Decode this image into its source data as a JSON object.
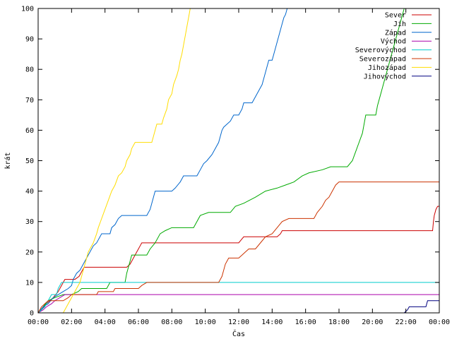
{
  "chart_data": {
    "type": "line",
    "xlabel": "Čas",
    "ylabel": "krát",
    "xlim": [
      0,
      24
    ],
    "ylim": [
      0,
      100
    ],
    "x_ticks": [
      {
        "value": 0,
        "label": "00:00"
      },
      {
        "value": 2,
        "label": "02:00"
      },
      {
        "value": 4,
        "label": "04:00"
      },
      {
        "value": 6,
        "label": "06:00"
      },
      {
        "value": 8,
        "label": "08:00"
      },
      {
        "value": 10,
        "label": "10:00"
      },
      {
        "value": 12,
        "label": "12:00"
      },
      {
        "value": 14,
        "label": "14:00"
      },
      {
        "value": 16,
        "label": "16:00"
      },
      {
        "value": 18,
        "label": "18:00"
      },
      {
        "value": 20,
        "label": "20:00"
      },
      {
        "value": 22,
        "label": "22:00"
      },
      {
        "value": 24,
        "label": "00:00"
      }
    ],
    "y_ticks": [
      0,
      10,
      20,
      30,
      40,
      50,
      60,
      70,
      80,
      90,
      100
    ],
    "grid": false,
    "legend_position": "top-right",
    "series": [
      {
        "name": "Sever",
        "color": "#cc0000",
        "points": [
          [
            0.0,
            0
          ],
          [
            0.2,
            1
          ],
          [
            0.35,
            2
          ],
          [
            0.5,
            3
          ],
          [
            0.7,
            4
          ],
          [
            0.9,
            5
          ],
          [
            1.05,
            6
          ],
          [
            1.2,
            7
          ],
          [
            1.3,
            8
          ],
          [
            1.4,
            9
          ],
          [
            1.5,
            10
          ],
          [
            1.6,
            11
          ],
          [
            2.2,
            11
          ],
          [
            2.45,
            12
          ],
          [
            2.55,
            13
          ],
          [
            2.65,
            14
          ],
          [
            2.75,
            15
          ],
          [
            5.3,
            15
          ],
          [
            5.5,
            16
          ],
          [
            5.6,
            17
          ],
          [
            5.7,
            18
          ],
          [
            5.8,
            19
          ],
          [
            5.9,
            20
          ],
          [
            6.0,
            21
          ],
          [
            6.1,
            22
          ],
          [
            6.2,
            23
          ],
          [
            12.0,
            23
          ],
          [
            12.15,
            24
          ],
          [
            12.3,
            25
          ],
          [
            14.3,
            25
          ],
          [
            14.5,
            26
          ],
          [
            14.6,
            27
          ],
          [
            23.6,
            27
          ],
          [
            23.65,
            30
          ],
          [
            23.7,
            32
          ],
          [
            23.8,
            34
          ],
          [
            23.9,
            35
          ],
          [
            24.0,
            35
          ]
        ]
      },
      {
        "name": "Jih",
        "color": "#00aa00",
        "points": [
          [
            0.0,
            0
          ],
          [
            0.3,
            2
          ],
          [
            0.6,
            4
          ],
          [
            1.0,
            5
          ],
          [
            1.5,
            6
          ],
          [
            2.0,
            6
          ],
          [
            2.4,
            7
          ],
          [
            2.6,
            8
          ],
          [
            4.1,
            8
          ],
          [
            4.2,
            9
          ],
          [
            4.3,
            10
          ],
          [
            5.2,
            10
          ],
          [
            5.3,
            13
          ],
          [
            5.4,
            15
          ],
          [
            5.5,
            17
          ],
          [
            5.6,
            19
          ],
          [
            6.5,
            19
          ],
          [
            6.7,
            21
          ],
          [
            7.0,
            23
          ],
          [
            7.3,
            26
          ],
          [
            7.6,
            27
          ],
          [
            8.0,
            28
          ],
          [
            9.3,
            28
          ],
          [
            9.5,
            30
          ],
          [
            9.7,
            32
          ],
          [
            10.2,
            33
          ],
          [
            11.5,
            33
          ],
          [
            11.8,
            35
          ],
          [
            12.3,
            36
          ],
          [
            13.0,
            38
          ],
          [
            13.6,
            40
          ],
          [
            14.3,
            41
          ],
          [
            14.8,
            42
          ],
          [
            15.3,
            43
          ],
          [
            15.8,
            45
          ],
          [
            16.2,
            46
          ],
          [
            17.0,
            47
          ],
          [
            17.5,
            48
          ],
          [
            18.5,
            48
          ],
          [
            18.8,
            50
          ],
          [
            19.0,
            53
          ],
          [
            19.2,
            56
          ],
          [
            19.4,
            59
          ],
          [
            19.5,
            62
          ],
          [
            19.6,
            65
          ],
          [
            20.2,
            65
          ],
          [
            20.3,
            68
          ],
          [
            20.5,
            72
          ],
          [
            20.7,
            76
          ],
          [
            20.9,
            80
          ],
          [
            21.1,
            84
          ],
          [
            21.3,
            88
          ],
          [
            21.5,
            92
          ],
          [
            21.7,
            96
          ],
          [
            21.9,
            100
          ]
        ]
      },
      {
        "name": "Západ",
        "color": "#0066cc",
        "points": [
          [
            0.0,
            0
          ],
          [
            0.3,
            2
          ],
          [
            0.6,
            3
          ],
          [
            0.9,
            5
          ],
          [
            1.2,
            6
          ],
          [
            1.5,
            7
          ],
          [
            1.8,
            8
          ],
          [
            2.0,
            9
          ],
          [
            2.1,
            11
          ],
          [
            2.3,
            13
          ],
          [
            2.5,
            14
          ],
          [
            2.7,
            16
          ],
          [
            2.9,
            18
          ],
          [
            3.1,
            20
          ],
          [
            3.3,
            22
          ],
          [
            3.5,
            23
          ],
          [
            3.6,
            24
          ],
          [
            3.7,
            25
          ],
          [
            3.8,
            26
          ],
          [
            4.3,
            26
          ],
          [
            4.4,
            28
          ],
          [
            4.6,
            29
          ],
          [
            4.8,
            31
          ],
          [
            5.0,
            32
          ],
          [
            6.5,
            32
          ],
          [
            6.7,
            34
          ],
          [
            6.8,
            36
          ],
          [
            6.9,
            38
          ],
          [
            7.0,
            40
          ],
          [
            8.0,
            40
          ],
          [
            8.2,
            41
          ],
          [
            8.5,
            43
          ],
          [
            8.7,
            45
          ],
          [
            9.5,
            45
          ],
          [
            9.7,
            47
          ],
          [
            9.9,
            49
          ],
          [
            10.1,
            50
          ],
          [
            10.4,
            52
          ],
          [
            10.6,
            54
          ],
          [
            10.8,
            56
          ],
          [
            10.9,
            58
          ],
          [
            11.0,
            60
          ],
          [
            11.1,
            61
          ],
          [
            11.3,
            62
          ],
          [
            11.5,
            63
          ],
          [
            11.7,
            65
          ],
          [
            12.0,
            65
          ],
          [
            12.2,
            67
          ],
          [
            12.3,
            69
          ],
          [
            12.8,
            69
          ],
          [
            13.0,
            71
          ],
          [
            13.2,
            73
          ],
          [
            13.4,
            75
          ],
          [
            13.5,
            77
          ],
          [
            13.6,
            79
          ],
          [
            13.7,
            81
          ],
          [
            13.8,
            83
          ],
          [
            14.0,
            83
          ],
          [
            14.1,
            85
          ],
          [
            14.2,
            87
          ],
          [
            14.3,
            89
          ],
          [
            14.4,
            91
          ],
          [
            14.5,
            93
          ],
          [
            14.6,
            95
          ],
          [
            14.7,
            97
          ],
          [
            14.8,
            98
          ],
          [
            14.9,
            100
          ]
        ]
      },
      {
        "name": "Východ",
        "color": "#aa00aa",
        "points": [
          [
            0.0,
            0
          ],
          [
            0.3,
            1
          ],
          [
            0.5,
            2
          ],
          [
            0.8,
            3
          ],
          [
            1.0,
            4
          ],
          [
            1.3,
            5
          ],
          [
            1.6,
            6
          ],
          [
            24.0,
            6
          ]
        ]
      },
      {
        "name": "Severovýchod",
        "color": "#00cccc",
        "points": [
          [
            0.0,
            0
          ],
          [
            0.4,
            2
          ],
          [
            0.6,
            4
          ],
          [
            0.7,
            5
          ],
          [
            0.8,
            6
          ],
          [
            1.1,
            6
          ],
          [
            1.2,
            8
          ],
          [
            1.3,
            9
          ],
          [
            1.4,
            10
          ],
          [
            24.0,
            10
          ]
        ]
      },
      {
        "name": "Severozápad",
        "color": "#cc3300",
        "points": [
          [
            0.0,
            0
          ],
          [
            0.2,
            2
          ],
          [
            0.4,
            3
          ],
          [
            0.6,
            4
          ],
          [
            1.0,
            4
          ],
          [
            1.5,
            4
          ],
          [
            1.8,
            5
          ],
          [
            2.0,
            6
          ],
          [
            3.5,
            6
          ],
          [
            3.6,
            7
          ],
          [
            4.5,
            7
          ],
          [
            4.6,
            8
          ],
          [
            6.0,
            8
          ],
          [
            6.2,
            9
          ],
          [
            6.5,
            10
          ],
          [
            10.8,
            10
          ],
          [
            10.9,
            11
          ],
          [
            11.0,
            12
          ],
          [
            11.1,
            14
          ],
          [
            11.2,
            16
          ],
          [
            11.3,
            17
          ],
          [
            11.4,
            18
          ],
          [
            12.0,
            18
          ],
          [
            12.2,
            19
          ],
          [
            12.4,
            20
          ],
          [
            12.6,
            21
          ],
          [
            13.0,
            21
          ],
          [
            13.3,
            23
          ],
          [
            13.6,
            25
          ],
          [
            14.0,
            26
          ],
          [
            14.3,
            28
          ],
          [
            14.6,
            30
          ],
          [
            15.0,
            31
          ],
          [
            16.5,
            31
          ],
          [
            16.7,
            33
          ],
          [
            17.0,
            35
          ],
          [
            17.2,
            37
          ],
          [
            17.4,
            38
          ],
          [
            17.6,
            40
          ],
          [
            17.8,
            42
          ],
          [
            18.0,
            43
          ],
          [
            24.0,
            43
          ]
        ]
      },
      {
        "name": "Jihozápad",
        "color": "#ffdd00",
        "points": [
          [
            1.5,
            0
          ],
          [
            1.7,
            2
          ],
          [
            1.9,
            4
          ],
          [
            2.1,
            6
          ],
          [
            2.3,
            8
          ],
          [
            2.5,
            10
          ],
          [
            2.6,
            12
          ],
          [
            2.7,
            14
          ],
          [
            2.8,
            16
          ],
          [
            2.9,
            18
          ],
          [
            3.0,
            20
          ],
          [
            3.1,
            21
          ],
          [
            3.3,
            23
          ],
          [
            3.5,
            26
          ],
          [
            3.6,
            28
          ],
          [
            3.8,
            31
          ],
          [
            4.0,
            34
          ],
          [
            4.2,
            37
          ],
          [
            4.4,
            40
          ],
          [
            4.6,
            42
          ],
          [
            4.8,
            45
          ],
          [
            5.0,
            46
          ],
          [
            5.2,
            48
          ],
          [
            5.3,
            50
          ],
          [
            5.5,
            52
          ],
          [
            5.6,
            54
          ],
          [
            5.8,
            56
          ],
          [
            6.8,
            56
          ],
          [
            6.9,
            58
          ],
          [
            7.0,
            60
          ],
          [
            7.1,
            62
          ],
          [
            7.4,
            62
          ],
          [
            7.5,
            64
          ],
          [
            7.7,
            67
          ],
          [
            7.8,
            70
          ],
          [
            8.0,
            72
          ],
          [
            8.1,
            75
          ],
          [
            8.3,
            78
          ],
          [
            8.4,
            80
          ],
          [
            8.5,
            83
          ],
          [
            8.6,
            85
          ],
          [
            8.7,
            88
          ],
          [
            8.8,
            91
          ],
          [
            8.9,
            94
          ],
          [
            9.0,
            97
          ],
          [
            9.1,
            100
          ]
        ]
      },
      {
        "name": "Jihovýchod",
        "color": "#000080",
        "points": [
          [
            21.9,
            0
          ],
          [
            22.1,
            1
          ],
          [
            22.2,
            2
          ],
          [
            23.2,
            2
          ],
          [
            23.3,
            4
          ],
          [
            24.0,
            4
          ]
        ]
      }
    ]
  }
}
